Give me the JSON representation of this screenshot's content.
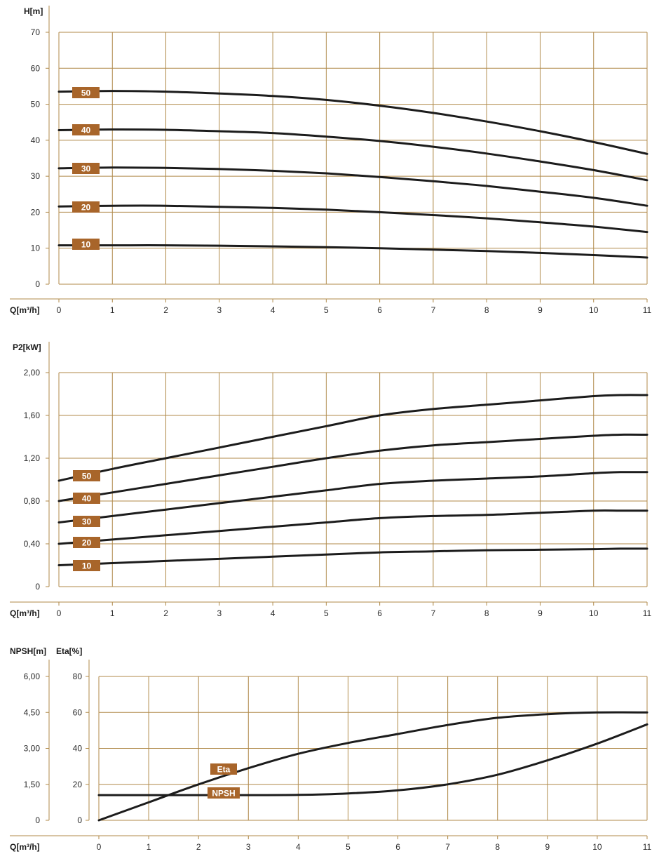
{
  "colors": {
    "grid": "#b08a4a",
    "curve": "#1c1c1c",
    "tag_fill": "#a8652a",
    "tag_text": "#ffffff",
    "tick_text": "#2a2a2a"
  },
  "chart_data": [
    {
      "type": "line",
      "ylabel": "H[m]",
      "xlabel": "Q[m³/h]",
      "xlim": [
        0,
        11
      ],
      "ylim": [
        0,
        70
      ],
      "x_ticks": [
        "0",
        "1",
        "2",
        "3",
        "4",
        "5",
        "6",
        "7",
        "8",
        "9",
        "10",
        "11"
      ],
      "y_ticks": [
        {
          "value": 0,
          "label": "0"
        },
        {
          "value": 10,
          "label": "10"
        },
        {
          "value": 20,
          "label": "20"
        },
        {
          "value": 30,
          "label": "30"
        },
        {
          "value": 40,
          "label": "40"
        },
        {
          "value": 50,
          "label": "50"
        },
        {
          "value": 60,
          "label": "60"
        },
        {
          "value": 70,
          "label": "70"
        }
      ],
      "grid": true,
      "series": [
        {
          "name": "50",
          "x": [
            0,
            1,
            2,
            3,
            4,
            5,
            6,
            7,
            8,
            9,
            10,
            11
          ],
          "y": [
            53.5,
            53.7,
            53.5,
            53.0,
            52.3,
            51.2,
            49.6,
            47.6,
            45.2,
            42.5,
            39.5,
            36.2
          ]
        },
        {
          "name": "40",
          "x": [
            0,
            1,
            2,
            3,
            4,
            5,
            6,
            7,
            8,
            9,
            10,
            11
          ],
          "y": [
            42.8,
            43.0,
            42.9,
            42.5,
            42.0,
            41.0,
            39.8,
            38.2,
            36.3,
            34.1,
            31.7,
            28.9
          ]
        },
        {
          "name": "30",
          "x": [
            0,
            1,
            2,
            3,
            4,
            5,
            6,
            7,
            8,
            9,
            10,
            11
          ],
          "y": [
            32.2,
            32.4,
            32.3,
            32.0,
            31.5,
            30.8,
            29.8,
            28.6,
            27.3,
            25.7,
            24.0,
            21.8
          ]
        },
        {
          "name": "20",
          "x": [
            0,
            1,
            2,
            3,
            4,
            5,
            6,
            7,
            8,
            9,
            10,
            11
          ],
          "y": [
            21.6,
            21.8,
            21.8,
            21.5,
            21.2,
            20.7,
            20.0,
            19.2,
            18.3,
            17.2,
            16.0,
            14.5
          ]
        },
        {
          "name": "10",
          "x": [
            0,
            1,
            2,
            3,
            4,
            5,
            6,
            7,
            8,
            9,
            10,
            11
          ],
          "y": [
            10.8,
            10.8,
            10.8,
            10.7,
            10.5,
            10.3,
            10.0,
            9.6,
            9.2,
            8.7,
            8.1,
            7.4
          ]
        }
      ]
    },
    {
      "type": "line",
      "ylabel": "P2[kW]",
      "xlabel": "Q[m³/h]",
      "xlim": [
        0,
        11
      ],
      "ylim": [
        0,
        2.0
      ],
      "x_ticks": [
        "0",
        "1",
        "2",
        "3",
        "4",
        "5",
        "6",
        "7",
        "8",
        "9",
        "10",
        "11"
      ],
      "y_ticks": [
        {
          "value": 0,
          "label": "0"
        },
        {
          "value": 0.4,
          "label": "0,40"
        },
        {
          "value": 0.8,
          "label": "0,80"
        },
        {
          "value": 1.2,
          "label": "1,20"
        },
        {
          "value": 1.6,
          "label": "1,60"
        },
        {
          "value": 2.0,
          "label": "2,00"
        }
      ],
      "grid": true,
      "series": [
        {
          "name": "50",
          "x": [
            0,
            1,
            2,
            3,
            4,
            5,
            6,
            7,
            8,
            9,
            10,
            10.5,
            11
          ],
          "y": [
            0.99,
            1.1,
            1.2,
            1.3,
            1.4,
            1.5,
            1.6,
            1.66,
            1.7,
            1.74,
            1.78,
            1.79,
            1.79
          ]
        },
        {
          "name": "40",
          "x": [
            0,
            1,
            2,
            3,
            4,
            5,
            6,
            7,
            8,
            9,
            10,
            10.5,
            11
          ],
          "y": [
            0.8,
            0.88,
            0.96,
            1.04,
            1.12,
            1.2,
            1.27,
            1.32,
            1.35,
            1.38,
            1.41,
            1.42,
            1.42
          ]
        },
        {
          "name": "30",
          "x": [
            0,
            1,
            2,
            3,
            4,
            5,
            6,
            7,
            8,
            9,
            10,
            10.5,
            11
          ],
          "y": [
            0.6,
            0.66,
            0.72,
            0.78,
            0.84,
            0.9,
            0.96,
            0.99,
            1.01,
            1.03,
            1.06,
            1.07,
            1.07
          ]
        },
        {
          "name": "20",
          "x": [
            0,
            1,
            2,
            3,
            4,
            5,
            6,
            7,
            8,
            9,
            10,
            10.5,
            11
          ],
          "y": [
            0.4,
            0.44,
            0.48,
            0.52,
            0.56,
            0.6,
            0.64,
            0.66,
            0.67,
            0.69,
            0.71,
            0.71,
            0.71
          ]
        },
        {
          "name": "10",
          "x": [
            0,
            1,
            2,
            3,
            4,
            5,
            6,
            7,
            8,
            9,
            10,
            10.5,
            11
          ],
          "y": [
            0.2,
            0.22,
            0.24,
            0.26,
            0.28,
            0.3,
            0.32,
            0.33,
            0.34,
            0.345,
            0.35,
            0.355,
            0.355
          ]
        }
      ]
    },
    {
      "type": "line",
      "ylabel": "NPSH[m]",
      "ylabel2": "Eta[%]",
      "xlabel": "Q[m³/h]",
      "xlim": [
        0,
        11
      ],
      "ylim": [
        0,
        80
      ],
      "x_ticks": [
        "0",
        "1",
        "2",
        "3",
        "4",
        "5",
        "6",
        "7",
        "8",
        "9",
        "10",
        "11"
      ],
      "y_ticks": [
        {
          "value": 0,
          "label": "0"
        },
        {
          "value": 20,
          "label": "20"
        },
        {
          "value": 40,
          "label": "40"
        },
        {
          "value": 60,
          "label": "60"
        },
        {
          "value": 80,
          "label": "80"
        }
      ],
      "y2_ticks": [
        {
          "value": 0,
          "label": "0"
        },
        {
          "value": 20,
          "label": "1,50"
        },
        {
          "value": 40,
          "label": "3,00"
        },
        {
          "value": 60,
          "label": "4,50"
        },
        {
          "value": 80,
          "label": "6,00"
        }
      ],
      "grid": true,
      "series": [
        {
          "name": "Eta",
          "axis": "Eta[%]",
          "x": [
            0,
            1,
            2,
            3,
            4,
            5,
            6,
            7,
            8,
            9,
            10,
            11
          ],
          "y": [
            0,
            10,
            20,
            29,
            37,
            43,
            48,
            53,
            57,
            59,
            60,
            60
          ]
        },
        {
          "name": "NPSH",
          "axis": "NPSH[m]",
          "x": [
            0,
            1,
            2,
            3,
            4,
            5,
            6,
            7,
            8,
            9,
            10,
            11
          ],
          "y": [
            1.05,
            1.05,
            1.05,
            1.05,
            1.06,
            1.12,
            1.25,
            1.5,
            1.9,
            2.5,
            3.2,
            4.0
          ]
        }
      ]
    }
  ]
}
